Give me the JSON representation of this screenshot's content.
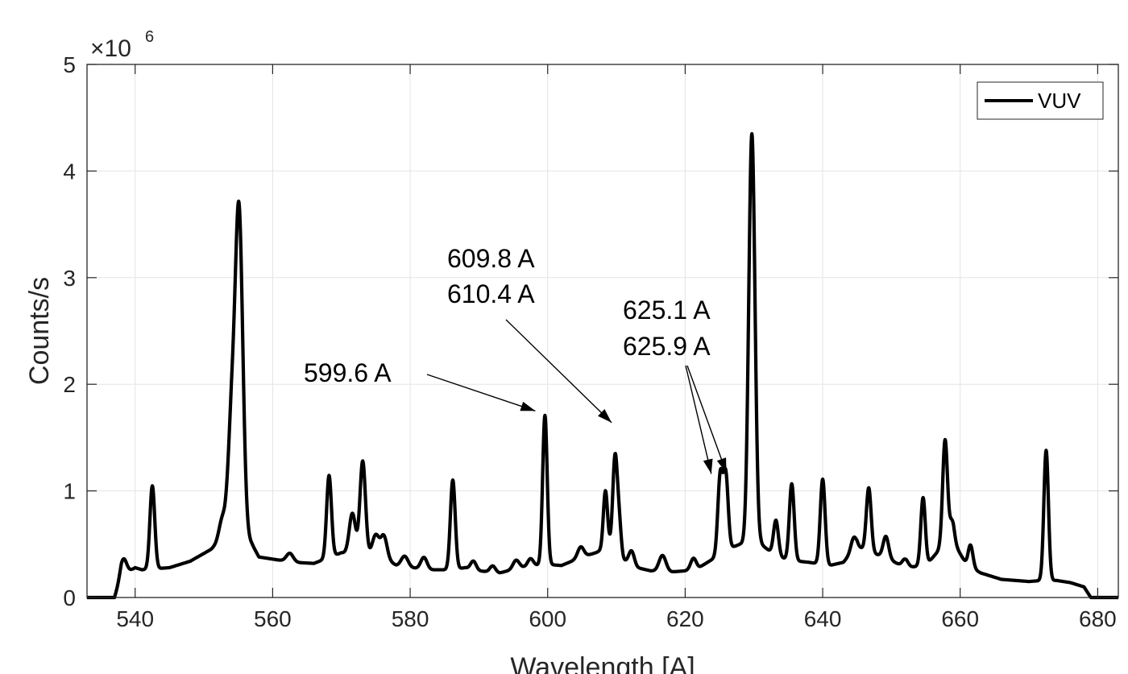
{
  "chart_data": {
    "type": "line",
    "xlabel": "Wavelength [A]",
    "ylabel": "Counts/s",
    "xlim": [
      533,
      683
    ],
    "ylim": [
      0,
      5000000
    ],
    "grid": true,
    "y_exponent_label": "×10",
    "y_exponent_power": "6",
    "x_ticks": [
      540,
      560,
      580,
      600,
      620,
      640,
      660,
      680
    ],
    "x_tick_labels": [
      "540",
      "560",
      "580",
      "600",
      "620",
      "640",
      "660",
      "680"
    ],
    "y_ticks": [
      0,
      1000000,
      2000000,
      3000000,
      4000000,
      5000000
    ],
    "y_tick_labels": [
      "0",
      "1",
      "2",
      "3",
      "4",
      "5"
    ],
    "legend": {
      "position": "top-right",
      "entries": [
        "VUV"
      ]
    },
    "series": [
      {
        "name": "VUV",
        "color": "#000000",
        "baseline": [
          [
            533,
            0
          ],
          [
            537,
            0
          ],
          [
            538,
            200000
          ],
          [
            540,
            280000
          ],
          [
            541,
            260000
          ],
          [
            545,
            280000
          ],
          [
            548,
            340000
          ],
          [
            551,
            450000
          ],
          [
            553,
            560000
          ],
          [
            554,
            700000
          ],
          [
            557,
            500000
          ],
          [
            558,
            380000
          ],
          [
            560,
            360000
          ],
          [
            563,
            330000
          ],
          [
            566,
            320000
          ],
          [
            570,
            420000
          ],
          [
            573,
            400000
          ],
          [
            576,
            380000
          ],
          [
            578,
            300000
          ],
          [
            580,
            280000
          ],
          [
            583,
            260000
          ],
          [
            586,
            260000
          ],
          [
            588,
            280000
          ],
          [
            590,
            250000
          ],
          [
            593,
            230000
          ],
          [
            596,
            280000
          ],
          [
            598,
            300000
          ],
          [
            600,
            310000
          ],
          [
            602,
            300000
          ],
          [
            605,
            380000
          ],
          [
            607,
            420000
          ],
          [
            609,
            480000
          ],
          [
            611,
            350000
          ],
          [
            613,
            280000
          ],
          [
            615,
            250000
          ],
          [
            618,
            240000
          ],
          [
            620,
            250000
          ],
          [
            622,
            280000
          ],
          [
            624,
            360000
          ],
          [
            626,
            450000
          ],
          [
            628,
            500000
          ],
          [
            631,
            500000
          ],
          [
            633,
            400000
          ],
          [
            635,
            350000
          ],
          [
            638,
            330000
          ],
          [
            641,
            300000
          ],
          [
            643,
            330000
          ],
          [
            645,
            480000
          ],
          [
            647,
            420000
          ],
          [
            649,
            380000
          ],
          [
            652,
            280000
          ],
          [
            655,
            300000
          ],
          [
            657,
            450000
          ],
          [
            659,
            520000
          ],
          [
            661,
            300000
          ],
          [
            663,
            230000
          ],
          [
            666,
            170000
          ],
          [
            670,
            150000
          ],
          [
            672,
            160000
          ],
          [
            674,
            160000
          ],
          [
            676,
            140000
          ],
          [
            678,
            100000
          ],
          [
            679,
            0
          ],
          [
            683,
            0
          ]
        ],
        "peaks": [
          [
            538.3,
            150000,
            0.45
          ],
          [
            542.5,
            780000,
            0.35
          ],
          [
            552.7,
            200000,
            0.5
          ],
          [
            554.0,
            900000,
            0.5
          ],
          [
            555.1,
            3000000,
            0.55
          ],
          [
            562.5,
            80000,
            0.5
          ],
          [
            568.2,
            770000,
            0.35
          ],
          [
            571.6,
            380000,
            0.45
          ],
          [
            573.1,
            880000,
            0.4
          ],
          [
            575.0,
            200000,
            0.5
          ],
          [
            576.2,
            200000,
            0.45
          ],
          [
            579.2,
            100000,
            0.5
          ],
          [
            582.0,
            110000,
            0.45
          ],
          [
            586.2,
            840000,
            0.35
          ],
          [
            589.2,
            80000,
            0.4
          ],
          [
            592.0,
            60000,
            0.4
          ],
          [
            595.4,
            80000,
            0.45
          ],
          [
            597.5,
            70000,
            0.4
          ],
          [
            599.6,
            1400000,
            0.33
          ],
          [
            604.8,
            100000,
            0.45
          ],
          [
            608.4,
            540000,
            0.3
          ],
          [
            609.8,
            880000,
            0.33
          ],
          [
            610.4,
            300000,
            0.3
          ],
          [
            612.2,
            130000,
            0.4
          ],
          [
            616.7,
            150000,
            0.5
          ],
          [
            621.2,
            100000,
            0.4
          ],
          [
            625.1,
            730000,
            0.35
          ],
          [
            625.9,
            700000,
            0.35
          ],
          [
            629.7,
            3850000,
            0.45
          ],
          [
            633.2,
            330000,
            0.35
          ],
          [
            635.5,
            720000,
            0.35
          ],
          [
            640.0,
            800000,
            0.35
          ],
          [
            644.5,
            120000,
            0.4
          ],
          [
            646.7,
            600000,
            0.35
          ],
          [
            649.2,
            200000,
            0.4
          ],
          [
            652.0,
            80000,
            0.4
          ],
          [
            654.6,
            640000,
            0.33
          ],
          [
            657.8,
            1000000,
            0.35
          ],
          [
            658.8,
            200000,
            0.35
          ],
          [
            661.5,
            210000,
            0.35
          ],
          [
            672.5,
            1220000,
            0.33
          ]
        ]
      }
    ],
    "annotations": [
      {
        "lines": [
          "599.6 A"
        ],
        "targets": [
          [
            598.2,
            1750000
          ]
        ]
      },
      {
        "lines": [
          "609.8 A",
          "610.4 A"
        ],
        "targets": [
          [
            609.3,
            1640000
          ]
        ]
      },
      {
        "lines": [
          "625.1 A",
          "625.9 A"
        ],
        "targets": [
          [
            623.8,
            1160000
          ],
          [
            626.0,
            1170000
          ]
        ]
      }
    ]
  }
}
